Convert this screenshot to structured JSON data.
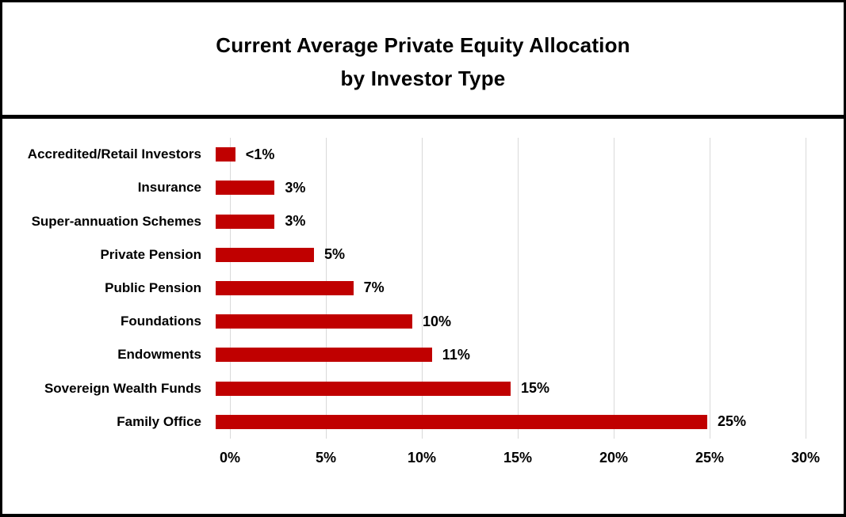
{
  "chart_data": {
    "type": "bar",
    "orientation": "horizontal",
    "title_line1": "Current Average Private Equity Allocation",
    "title_line2": "by Investor Type",
    "categories": [
      "Accredited/Retail Investors",
      "Insurance",
      "Super-annuation Schemes",
      "Private Pension",
      "Public Pension",
      "Foundations",
      "Endowments",
      "Sovereign Wealth Funds",
      "Family Office"
    ],
    "values": [
      1,
      3,
      3,
      5,
      7,
      10,
      11,
      15,
      25
    ],
    "value_labels": [
      "<1%",
      "3%",
      "3%",
      "5%",
      "7%",
      "10%",
      "11%",
      "15%",
      "25%"
    ],
    "x_ticks": [
      "0%",
      "5%",
      "10%",
      "15%",
      "20%",
      "25%",
      "30%"
    ],
    "xlim": [
      0,
      30
    ],
    "grid": true,
    "legend": "none",
    "bar_color": "#C00000",
    "gridline_color": "#D9D9D9",
    "frame_border_color": "#000000"
  }
}
